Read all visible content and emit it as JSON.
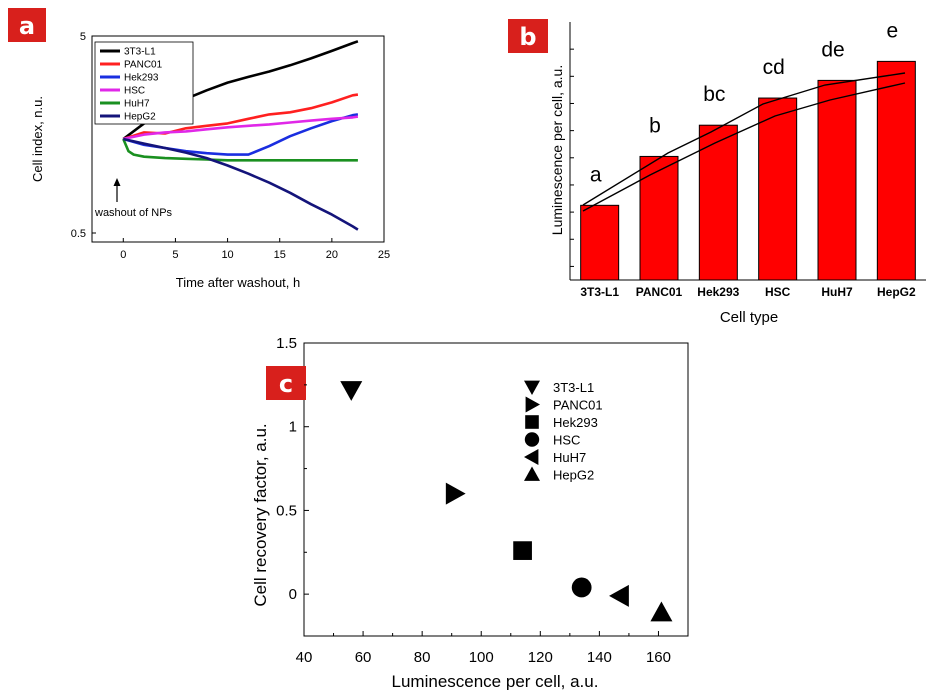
{
  "colors": {
    "badge": "#d8201c",
    "bar_fill": "#ff0000",
    "axis": "#000000"
  },
  "panels": {
    "a": {
      "badge": "a"
    },
    "b": {
      "badge": "b"
    },
    "c": {
      "badge": "c"
    }
  },
  "chart_data": [
    {
      "id": "a",
      "type": "line",
      "xlabel": "Time after washout, h",
      "ylabel": "Cell index, n.u.",
      "xlim": [
        -3,
        25
      ],
      "xticks": [
        0,
        5,
        10,
        15,
        20,
        25
      ],
      "ylim": [
        0.45,
        5
      ],
      "yscale": "log",
      "yticks": [
        0.5,
        5
      ],
      "legend_position": "top-left",
      "annotation": "washout of NPs",
      "series": [
        {
          "name": "3T3-L1",
          "color": "#000000",
          "x": [
            0,
            2,
            4,
            6,
            8,
            10,
            12,
            14,
            16,
            18,
            20,
            22,
            22.5
          ],
          "y": [
            1.5,
            1.8,
            2.1,
            2.4,
            2.65,
            2.9,
            3.1,
            3.3,
            3.55,
            3.85,
            4.2,
            4.6,
            4.7
          ]
        },
        {
          "name": "PANC01",
          "color": "#ff2020",
          "x": [
            0,
            2,
            4,
            6,
            8,
            10,
            12,
            14,
            16,
            18,
            20,
            22,
            22.5
          ],
          "y": [
            1.5,
            1.62,
            1.6,
            1.7,
            1.75,
            1.8,
            1.9,
            2.0,
            2.05,
            2.15,
            2.3,
            2.5,
            2.52
          ]
        },
        {
          "name": "Hek293",
          "color": "#1a2ee0",
          "x": [
            0,
            2,
            4,
            6,
            8,
            10,
            12,
            14,
            16,
            18,
            20,
            22,
            22.5
          ],
          "y": [
            1.5,
            1.4,
            1.35,
            1.3,
            1.27,
            1.25,
            1.25,
            1.38,
            1.55,
            1.7,
            1.85,
            1.98,
            2.0
          ]
        },
        {
          "name": "HSC",
          "color": "#e028e8",
          "x": [
            0,
            2,
            4,
            6,
            8,
            10,
            12,
            14,
            16,
            18,
            20,
            22,
            22.5
          ],
          "y": [
            1.5,
            1.58,
            1.62,
            1.64,
            1.68,
            1.72,
            1.75,
            1.78,
            1.82,
            1.86,
            1.9,
            1.93,
            1.95
          ]
        },
        {
          "name": "HuH7",
          "color": "#1a9020",
          "x": [
            0,
            0.5,
            1,
            2,
            4,
            6,
            8,
            10,
            15,
            22.5
          ],
          "y": [
            1.5,
            1.3,
            1.25,
            1.22,
            1.2,
            1.19,
            1.18,
            1.17,
            1.17,
            1.17
          ]
        },
        {
          "name": "HepG2",
          "color": "#14147a",
          "x": [
            0,
            2,
            4,
            6,
            8,
            10,
            12,
            14,
            16,
            18,
            20,
            22,
            22.5
          ],
          "y": [
            1.5,
            1.42,
            1.35,
            1.28,
            1.2,
            1.1,
            1.0,
            0.9,
            0.8,
            0.7,
            0.62,
            0.54,
            0.52
          ]
        }
      ]
    },
    {
      "id": "b",
      "type": "bar",
      "xlabel": "Cell type",
      "ylabel": "Luminescence per cell, a.u.",
      "categories": [
        "3T3-L1",
        "PANC01",
        "Hek293",
        "HSC",
        "HuH7",
        "HepG2"
      ],
      "values": [
        55,
        91,
        114,
        134,
        147,
        161
      ],
      "ylim": [
        0,
        190
      ],
      "significance_letters": [
        "a",
        "b",
        "bc",
        "cd",
        "de",
        "e"
      ]
    },
    {
      "id": "c",
      "type": "scatter",
      "xlabel": "Luminescence per cell, a.u.",
      "ylabel": "Cell recovery factor, a.u.",
      "xlim": [
        40,
        170
      ],
      "xticks": [
        40,
        60,
        80,
        100,
        120,
        140,
        160
      ],
      "ylim": [
        -0.25,
        1.5
      ],
      "yticks": [
        0.0,
        0.5,
        1.0,
        1.5
      ],
      "legend_position": "top-right",
      "points": [
        {
          "name": "3T3-L1",
          "marker": "triangle-down",
          "x": 56,
          "y": 1.22
        },
        {
          "name": "PANC01",
          "marker": "triangle-right",
          "x": 91,
          "y": 0.6
        },
        {
          "name": "Hek293",
          "marker": "square",
          "x": 114,
          "y": 0.26
        },
        {
          "name": "HSC",
          "marker": "circle",
          "x": 134,
          "y": 0.04
        },
        {
          "name": "HuH7",
          "marker": "triangle-left",
          "x": 147,
          "y": -0.01
        },
        {
          "name": "HepG2",
          "marker": "triangle-up",
          "x": 161,
          "y": -0.11
        }
      ]
    }
  ]
}
